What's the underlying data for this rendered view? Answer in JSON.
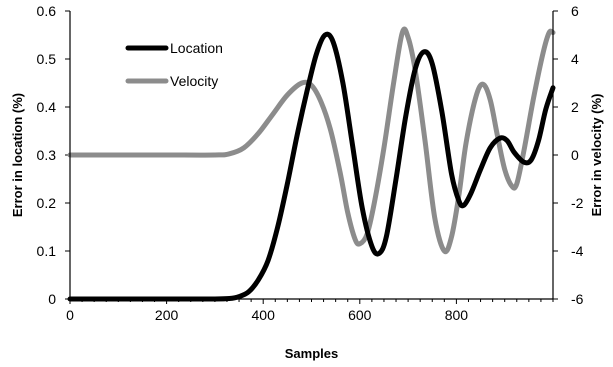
{
  "chart_data": {
    "type": "line",
    "title": "",
    "xlabel": "Samples",
    "ylabel_left": "Error in location (%)",
    "ylabel_right": "Error in velocity (%)",
    "xlim": [
      0,
      1000
    ],
    "ylim_left": [
      0,
      0.6
    ],
    "ylim_right": [
      -6,
      6
    ],
    "x_ticks": [
      0,
      200,
      400,
      600,
      800
    ],
    "y_left_ticks": [
      0,
      0.1,
      0.2,
      0.3,
      0.4,
      0.5,
      0.6
    ],
    "y_right_ticks": [
      -6,
      -4,
      -2,
      0,
      2,
      4,
      6
    ],
    "grid": false,
    "legend": "top-left",
    "series": [
      {
        "name": "Location",
        "axis": "left",
        "color": "#000000",
        "points": [
          [
            0,
            0.0
          ],
          [
            100,
            0.0
          ],
          [
            200,
            0.0
          ],
          [
            300,
            0.0
          ],
          [
            330,
            0.001
          ],
          [
            350,
            0.005
          ],
          [
            370,
            0.015
          ],
          [
            390,
            0.04
          ],
          [
            410,
            0.08
          ],
          [
            430,
            0.15
          ],
          [
            450,
            0.24
          ],
          [
            470,
            0.34
          ],
          [
            490,
            0.43
          ],
          [
            510,
            0.51
          ],
          [
            528,
            0.55
          ],
          [
            545,
            0.535
          ],
          [
            565,
            0.45
          ],
          [
            585,
            0.32
          ],
          [
            605,
            0.19
          ],
          [
            625,
            0.11
          ],
          [
            640,
            0.095
          ],
          [
            655,
            0.13
          ],
          [
            675,
            0.25
          ],
          [
            695,
            0.38
          ],
          [
            715,
            0.48
          ],
          [
            733,
            0.515
          ],
          [
            750,
            0.49
          ],
          [
            770,
            0.39
          ],
          [
            790,
            0.26
          ],
          [
            805,
            0.205
          ],
          [
            815,
            0.195
          ],
          [
            830,
            0.22
          ],
          [
            850,
            0.27
          ],
          [
            870,
            0.315
          ],
          [
            890,
            0.335
          ],
          [
            905,
            0.33
          ],
          [
            920,
            0.305
          ],
          [
            940,
            0.285
          ],
          [
            955,
            0.29
          ],
          [
            970,
            0.33
          ],
          [
            985,
            0.395
          ],
          [
            1000,
            0.44
          ]
        ]
      },
      {
        "name": "Velocity",
        "axis": "right",
        "color": "#8c8c8c",
        "points": [
          [
            0,
            0.0
          ],
          [
            100,
            0.0
          ],
          [
            200,
            0.0
          ],
          [
            300,
            0.0
          ],
          [
            330,
            0.05
          ],
          [
            360,
            0.3
          ],
          [
            390,
            0.9
          ],
          [
            420,
            1.7
          ],
          [
            450,
            2.5
          ],
          [
            480,
            3.0
          ],
          [
            500,
            2.9
          ],
          [
            520,
            2.2
          ],
          [
            540,
            1.0
          ],
          [
            560,
            -0.8
          ],
          [
            575,
            -2.4
          ],
          [
            590,
            -3.5
          ],
          [
            600,
            -3.7
          ],
          [
            615,
            -3.3
          ],
          [
            630,
            -2.0
          ],
          [
            650,
            0.3
          ],
          [
            670,
            3.0
          ],
          [
            688,
            5.1
          ],
          [
            700,
            4.9
          ],
          [
            715,
            3.5
          ],
          [
            735,
            0.6
          ],
          [
            755,
            -2.6
          ],
          [
            775,
            -4.0
          ],
          [
            790,
            -3.4
          ],
          [
            805,
            -1.7
          ],
          [
            820,
            0.5
          ],
          [
            840,
            2.4
          ],
          [
            855,
            2.95
          ],
          [
            870,
            2.3
          ],
          [
            885,
            0.8
          ],
          [
            900,
            -0.6
          ],
          [
            915,
            -1.3
          ],
          [
            925,
            -1.2
          ],
          [
            940,
            0.2
          ],
          [
            960,
            2.4
          ],
          [
            980,
            4.3
          ],
          [
            992,
            5.1
          ],
          [
            1000,
            5.1
          ]
        ]
      }
    ]
  }
}
